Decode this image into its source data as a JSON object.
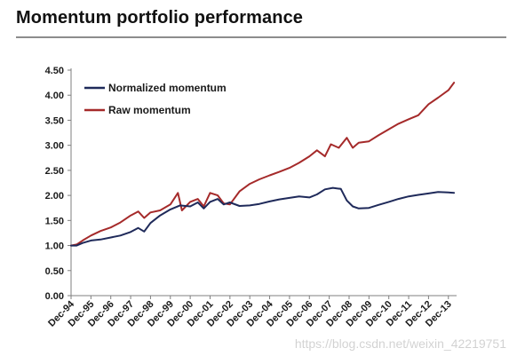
{
  "page": {
    "title": "Momentum portfolio performance",
    "watermark": "https://blog.csdn.net/weixin_42219751"
  },
  "chart_data": {
    "type": "line",
    "title": "",
    "xlabel": "",
    "ylabel": "",
    "ylim": [
      0,
      4.5
    ],
    "y_ticks": [
      "0.00",
      "0.50",
      "1.00",
      "1.50",
      "2.00",
      "2.50",
      "3.00",
      "3.50",
      "4.00",
      "4.50"
    ],
    "x_ticks": [
      "Dec-94",
      "Dec-95",
      "Dec-96",
      "Dec-97",
      "Dec-98",
      "Dec-99",
      "Dec-00",
      "Dec-01",
      "Dec-02",
      "Dec-03",
      "Dec-04",
      "Dec-05",
      "Dec-06",
      "Dec-07",
      "Dec-08",
      "Dec-09",
      "Dec-10",
      "Dec-11",
      "Dec-12",
      "Dec-13"
    ],
    "x_range": [
      1994.917,
      2014.33
    ],
    "grid": false,
    "legend_position": "top-left",
    "series": [
      {
        "name": "Normalized momentum",
        "color": "#1f2a5a",
        "points": [
          [
            1994.917,
            1.0
          ],
          [
            1995.2,
            1.0
          ],
          [
            1995.5,
            1.05
          ],
          [
            1995.917,
            1.1
          ],
          [
            1996.4,
            1.12
          ],
          [
            1996.917,
            1.16
          ],
          [
            1997.4,
            1.2
          ],
          [
            1997.917,
            1.27
          ],
          [
            1998.3,
            1.35
          ],
          [
            1998.6,
            1.28
          ],
          [
            1998.917,
            1.45
          ],
          [
            1999.4,
            1.6
          ],
          [
            1999.917,
            1.72
          ],
          [
            2000.4,
            1.8
          ],
          [
            2000.917,
            1.78
          ],
          [
            2001.3,
            1.86
          ],
          [
            2001.6,
            1.74
          ],
          [
            2001.917,
            1.87
          ],
          [
            2002.3,
            1.93
          ],
          [
            2002.6,
            1.82
          ],
          [
            2002.917,
            1.86
          ],
          [
            2003.4,
            1.79
          ],
          [
            2003.917,
            1.8
          ],
          [
            2004.4,
            1.83
          ],
          [
            2004.917,
            1.88
          ],
          [
            2005.4,
            1.92
          ],
          [
            2005.917,
            1.95
          ],
          [
            2006.4,
            1.98
          ],
          [
            2006.917,
            1.96
          ],
          [
            2007.3,
            2.02
          ],
          [
            2007.7,
            2.12
          ],
          [
            2008.1,
            2.15
          ],
          [
            2008.5,
            2.13
          ],
          [
            2008.8,
            1.9
          ],
          [
            2009.1,
            1.78
          ],
          [
            2009.4,
            1.74
          ],
          [
            2009.917,
            1.75
          ],
          [
            2010.4,
            1.81
          ],
          [
            2010.917,
            1.87
          ],
          [
            2011.4,
            1.93
          ],
          [
            2011.917,
            1.98
          ],
          [
            2012.4,
            2.01
          ],
          [
            2012.917,
            2.04
          ],
          [
            2013.4,
            2.07
          ],
          [
            2013.917,
            2.06
          ],
          [
            2014.2,
            2.05
          ]
        ]
      },
      {
        "name": "Raw momentum",
        "color": "#a52a2a",
        "points": [
          [
            1994.917,
            1.0
          ],
          [
            1995.2,
            1.02
          ],
          [
            1995.5,
            1.1
          ],
          [
            1995.917,
            1.2
          ],
          [
            1996.4,
            1.29
          ],
          [
            1996.917,
            1.36
          ],
          [
            1997.4,
            1.46
          ],
          [
            1997.917,
            1.6
          ],
          [
            1998.3,
            1.68
          ],
          [
            1998.6,
            1.55
          ],
          [
            1998.917,
            1.66
          ],
          [
            1999.4,
            1.7
          ],
          [
            1999.917,
            1.82
          ],
          [
            2000.3,
            2.05
          ],
          [
            2000.5,
            1.7
          ],
          [
            2000.917,
            1.87
          ],
          [
            2001.3,
            1.93
          ],
          [
            2001.6,
            1.78
          ],
          [
            2001.917,
            2.05
          ],
          [
            2002.3,
            2.0
          ],
          [
            2002.6,
            1.84
          ],
          [
            2002.917,
            1.82
          ],
          [
            2003.4,
            2.08
          ],
          [
            2003.917,
            2.23
          ],
          [
            2004.4,
            2.32
          ],
          [
            2004.917,
            2.4
          ],
          [
            2005.4,
            2.47
          ],
          [
            2005.917,
            2.55
          ],
          [
            2006.4,
            2.65
          ],
          [
            2006.917,
            2.78
          ],
          [
            2007.3,
            2.9
          ],
          [
            2007.7,
            2.78
          ],
          [
            2008.0,
            3.02
          ],
          [
            2008.4,
            2.95
          ],
          [
            2008.8,
            3.15
          ],
          [
            2009.1,
            2.95
          ],
          [
            2009.4,
            3.05
          ],
          [
            2009.917,
            3.08
          ],
          [
            2010.4,
            3.2
          ],
          [
            2010.917,
            3.32
          ],
          [
            2011.4,
            3.43
          ],
          [
            2011.917,
            3.52
          ],
          [
            2012.4,
            3.6
          ],
          [
            2012.917,
            3.82
          ],
          [
            2013.4,
            3.95
          ],
          [
            2013.917,
            4.1
          ],
          [
            2014.2,
            4.25
          ]
        ]
      }
    ]
  }
}
